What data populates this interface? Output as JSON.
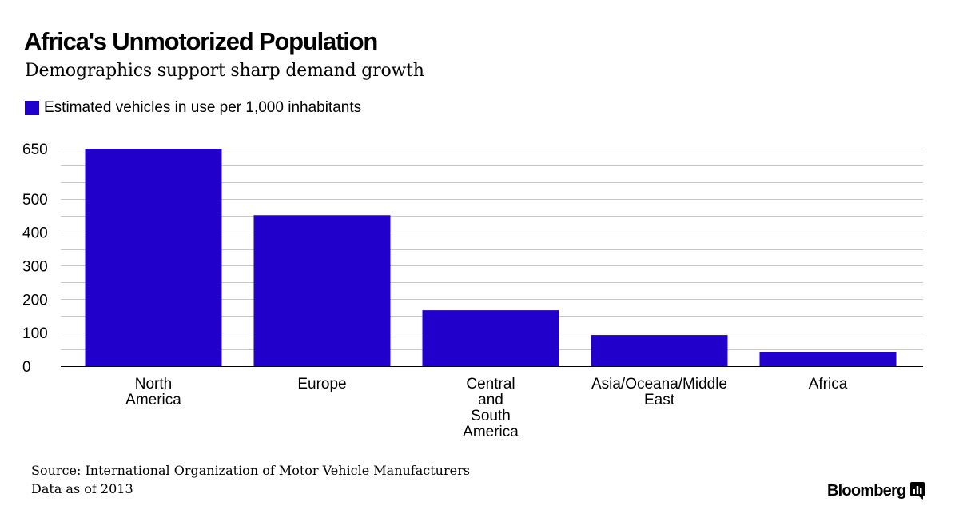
{
  "header": {
    "title": "Africa's Unmotorized Population",
    "subtitle": "Demographics support sharp demand growth"
  },
  "chart_data": {
    "type": "bar",
    "categories": [
      [
        "North",
        "America"
      ],
      [
        "Europe"
      ],
      [
        "Central",
        "and",
        "South",
        "America"
      ],
      [
        "Asia/Oceana/Middle",
        "East"
      ],
      [
        "Africa"
      ]
    ],
    "series": [
      {
        "name": "Estimated vehicles in use per 1,000 inhabitants",
        "values": [
          650,
          451,
          167,
          93,
          43
        ],
        "color": "#2200cc"
      }
    ],
    "yticks": [
      0,
      100,
      200,
      300,
      400,
      500,
      650
    ],
    "ylim": [
      0,
      650
    ],
    "grid": true,
    "legend_position": "top-left"
  },
  "footer": {
    "source": "Source: International Organization of Motor Vehicle Manufacturers",
    "note": "Data as of 2013",
    "brand": "Bloomberg"
  }
}
